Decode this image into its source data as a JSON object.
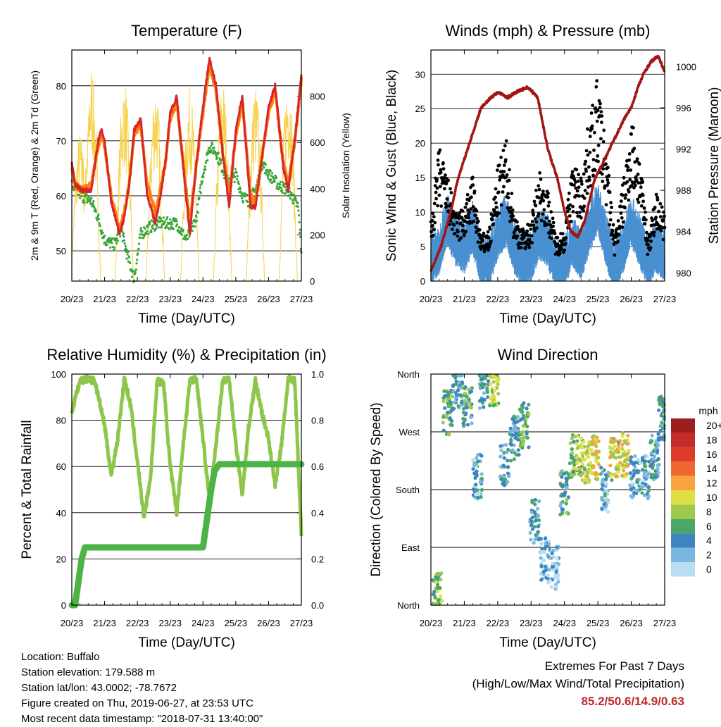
{
  "chart_data": [
    {
      "type": "line",
      "title": "Temperature (F)",
      "xlabel": "Time (Day/UTC)",
      "ylabel": "2m & 9m T (Red, Orange) & 2m Td (Green)",
      "y2label": "Solar Insolation (Yellow)",
      "x_ticks": [
        "20/23",
        "21/23",
        "22/23",
        "23/23",
        "24/23",
        "25/23",
        "26/23",
        "27/23"
      ],
      "y_ticks": [
        50,
        60,
        70,
        80
      ],
      "y2_ticks": [
        0,
        200,
        400,
        600,
        800
      ],
      "ylim": [
        44.5,
        86.5
      ],
      "y2lim": [
        0,
        1000
      ],
      "series": [
        {
          "name": "2m T",
          "color": "#d62728",
          "x": [
            0,
            0.1,
            0.3,
            0.6,
            0.8,
            0.9,
            1.0,
            1.2,
            1.45,
            1.6,
            1.75,
            1.9,
            2.1,
            2.3,
            2.55,
            2.7,
            2.85,
            3.0,
            3.2,
            3.45,
            3.6,
            3.75,
            3.95,
            4.2,
            4.4,
            4.6,
            4.8,
            5.0,
            5.2,
            5.45,
            5.6,
            5.8,
            6.0,
            6.2,
            6.45,
            6.6,
            6.8,
            7.0
          ],
          "values": [
            66,
            62,
            61,
            61,
            70,
            72,
            70,
            59,
            53,
            56,
            62,
            72,
            74,
            60,
            55,
            60,
            66,
            75,
            78,
            62,
            53,
            63,
            74,
            85,
            80,
            68,
            58,
            72,
            78,
            58,
            58,
            67,
            76,
            80,
            65,
            61,
            70,
            82
          ]
        },
        {
          "name": "9m T",
          "color": "#ff7f0e",
          "x": [
            0,
            0.1,
            0.3,
            0.6,
            0.8,
            0.9,
            1.0,
            1.2,
            1.45,
            1.6,
            1.75,
            1.9,
            2.1,
            2.3,
            2.55,
            2.7,
            2.85,
            3.0,
            3.2,
            3.45,
            3.6,
            3.75,
            3.95,
            4.2,
            4.4,
            4.6,
            4.8,
            5.0,
            5.2,
            5.45,
            5.6,
            5.8,
            6.0,
            6.2,
            6.45,
            6.6,
            6.8,
            7.0
          ],
          "values": [
            65,
            62,
            61,
            62,
            69,
            71,
            69,
            60,
            54,
            57,
            62,
            71,
            73,
            62,
            57,
            61,
            66,
            74,
            77,
            63,
            55,
            63,
            73,
            84,
            79,
            68,
            60,
            71,
            77,
            60,
            59,
            67,
            75,
            79,
            66,
            62,
            70,
            81
          ]
        },
        {
          "name": "2m Td",
          "color": "#3aa537",
          "x": [
            0,
            0.3,
            0.6,
            0.8,
            1.0,
            1.3,
            1.5,
            1.7,
            1.9,
            2.1,
            2.3,
            2.6,
            2.9,
            3.2,
            3.5,
            3.8,
            4.0,
            4.2,
            4.4,
            4.6,
            4.8,
            5.0,
            5.2,
            5.4,
            5.6,
            5.8,
            6.0,
            6.3,
            6.6,
            6.9,
            7.0
          ],
          "values": [
            62,
            60,
            59,
            56,
            52,
            51,
            54,
            49,
            45,
            53,
            54,
            55,
            55,
            55,
            52,
            56,
            64,
            69,
            68,
            65,
            62,
            64,
            60,
            59,
            61,
            66,
            64,
            62,
            61,
            58,
            50
          ]
        },
        {
          "name": "Solar Insolation",
          "color": "#f5d34c",
          "axis": "y2",
          "peaks_at_x": [
            0.25,
            0.6,
            1.6,
            2.55,
            3.6,
            4.6,
            5.6,
            6.6
          ],
          "peak_values": [
            650,
            950,
            880,
            870,
            850,
            880,
            860,
            920
          ]
        }
      ]
    },
    {
      "type": "scatter",
      "title": "Winds (mph) & Pressure (mb)",
      "xlabel": "Time (Day/UTC)",
      "ylabel": "Sonic Wind & Gust (Blue, Black)",
      "y2label": "Station Pressure (Maroon)",
      "x_ticks": [
        "20/23",
        "21/23",
        "22/23",
        "23/23",
        "24/23",
        "25/23",
        "26/23",
        "27/23"
      ],
      "y_ticks": [
        0,
        5,
        10,
        15,
        20,
        25,
        30
      ],
      "y2_ticks": [
        980,
        984,
        988,
        992,
        996,
        1000
      ],
      "ylim": [
        0,
        33.5
      ],
      "y2lim": [
        979.2,
        1001.6
      ],
      "series": [
        {
          "name": "Sonic Wind",
          "color": "#4a90d0",
          "x": [
            0,
            0.25,
            0.5,
            0.75,
            1.0,
            1.25,
            1.5,
            1.75,
            2.0,
            2.25,
            2.5,
            2.75,
            3.0,
            3.25,
            3.5,
            3.75,
            4.0,
            4.25,
            4.5,
            4.75,
            5.0,
            5.25,
            5.5,
            5.75,
            6.0,
            6.25,
            6.5,
            6.75,
            7.0
          ],
          "values": [
            4,
            6,
            10,
            7,
            6,
            9,
            4,
            4,
            8,
            10,
            6,
            4,
            5,
            8,
            7,
            3,
            4,
            7,
            5,
            9,
            12,
            7,
            3,
            6,
            10,
            7,
            4,
            6,
            5
          ]
        },
        {
          "name": "Gust",
          "color": "#000000",
          "x": [
            0,
            0.25,
            0.5,
            0.75,
            1.0,
            1.25,
            1.5,
            1.75,
            2.0,
            2.25,
            2.5,
            2.75,
            3.0,
            3.25,
            3.5,
            3.75,
            4.0,
            4.25,
            4.5,
            4.75,
            5.0,
            5.25,
            5.5,
            5.75,
            6.0,
            6.25,
            6.5,
            6.75,
            7.0
          ],
          "values": [
            8,
            18,
            14,
            9,
            10,
            14,
            6,
            7,
            15,
            19,
            9,
            7,
            8,
            15,
            12,
            6,
            7,
            16,
            14,
            22,
            27,
            18,
            6,
            13,
            22,
            17,
            6,
            12,
            9
          ]
        },
        {
          "name": "Station Pressure",
          "color": "#a31515",
          "axis": "y2",
          "x": [
            0,
            0.3,
            0.6,
            0.8,
            1.0,
            1.3,
            1.5,
            1.8,
            2.0,
            2.3,
            2.6,
            2.9,
            3.2,
            3.5,
            3.8,
            4.0,
            4.2,
            4.4,
            4.6,
            4.9,
            5.2,
            5.5,
            5.8,
            6.0,
            6.2,
            6.4,
            6.6,
            6.8,
            6.9,
            7.0
          ],
          "values": [
            980.2,
            982.5,
            986,
            989,
            991,
            994,
            996,
            997,
            997.5,
            997,
            997.6,
            998,
            997,
            992,
            989,
            986,
            984,
            983.5,
            985,
            989,
            991,
            993,
            995,
            996,
            998,
            999.5,
            1000.5,
            1001,
            1000.3,
            999.5
          ]
        }
      ]
    },
    {
      "type": "line",
      "title": "Relative Humidity (%) & Precipitation (in)",
      "xlabel": "Time (Day/UTC)",
      "ylabel": "Percent & Total Rainfall",
      "x_ticks": [
        "20/23",
        "21/23",
        "22/23",
        "23/23",
        "24/23",
        "25/23",
        "26/23",
        "27/23"
      ],
      "y_ticks": [
        0,
        20,
        40,
        60,
        80,
        100
      ],
      "y2_ticks": [
        "0.0",
        "0.2",
        "0.4",
        "0.6",
        "0.8",
        "1.0"
      ],
      "ylim": [
        0,
        100
      ],
      "y2lim": [
        0,
        1.0
      ],
      "series": [
        {
          "name": "Relative Humidity",
          "color": "#8dc64a",
          "x": [
            0,
            0.25,
            0.5,
            0.7,
            1.0,
            1.2,
            1.4,
            1.6,
            1.8,
            2.0,
            2.2,
            2.4,
            2.6,
            2.8,
            3.0,
            3.2,
            3.4,
            3.6,
            3.8,
            4.0,
            4.2,
            4.4,
            4.6,
            4.8,
            5.0,
            5.2,
            5.4,
            5.6,
            5.8,
            6.0,
            6.2,
            6.4,
            6.6,
            6.8,
            7.0
          ],
          "values": [
            84,
            97,
            98,
            97,
            78,
            56,
            72,
            98,
            86,
            62,
            38,
            55,
            97,
            96,
            60,
            40,
            70,
            97,
            98,
            72,
            45,
            70,
            97,
            98,
            70,
            48,
            78,
            97,
            83,
            72,
            52,
            70,
            98,
            97,
            31
          ]
        },
        {
          "name": "Total Rainfall",
          "color": "#4db346",
          "axis": "y2",
          "x": [
            0,
            0.1,
            0.2,
            0.3,
            0.4,
            0.6,
            1.0,
            2.0,
            3.0,
            4.0,
            4.05,
            4.15,
            4.25,
            4.35,
            4.5,
            5.0,
            6.0,
            7.0
          ],
          "values": [
            0,
            0,
            0.1,
            0.2,
            0.25,
            0.25,
            0.25,
            0.25,
            0.25,
            0.25,
            0.3,
            0.4,
            0.5,
            0.58,
            0.61,
            0.61,
            0.61,
            0.61
          ]
        }
      ]
    },
    {
      "type": "scatter",
      "title": "Wind Direction",
      "xlabel": "Time (Day/UTC)",
      "ylabel": "Direction (Colored By Speed)",
      "x_ticks": [
        "20/23",
        "21/23",
        "22/23",
        "23/23",
        "24/23",
        "25/23",
        "26/23",
        "27/23"
      ],
      "y_ticks": [
        "North",
        "East",
        "South",
        "West",
        "North"
      ],
      "ylim": [
        0,
        360
      ],
      "legend_title": "mph",
      "legend_labels": [
        "20+",
        "18",
        "16",
        "14",
        "12",
        "10",
        "8",
        "6",
        "4",
        "2",
        "0"
      ],
      "legend_colors": [
        "#9d1e1e",
        "#c42a27",
        "#df3b2b",
        "#ef6830",
        "#f8a33f",
        "#dedf47",
        "#9fc94a",
        "#4aa866",
        "#3d84c0",
        "#7bb6e0",
        "#b8def2"
      ],
      "clusters": [
        {
          "x": 0.2,
          "dir": 15,
          "speed": 7
        },
        {
          "x": 0.5,
          "dir": 300,
          "speed": 6
        },
        {
          "x": 0.8,
          "dir": 340,
          "speed": 4
        },
        {
          "x": 1.1,
          "dir": 310,
          "speed": 5
        },
        {
          "x": 1.4,
          "dir": 200,
          "speed": 3
        },
        {
          "x": 1.6,
          "dir": 340,
          "speed": 5
        },
        {
          "x": 1.9,
          "dir": 345,
          "speed": 8
        },
        {
          "x": 2.2,
          "dir": 220,
          "speed": 3
        },
        {
          "x": 2.5,
          "dir": 260,
          "speed": 4
        },
        {
          "x": 2.8,
          "dir": 280,
          "speed": 6
        },
        {
          "x": 3.1,
          "dir": 130,
          "speed": 4
        },
        {
          "x": 3.4,
          "dir": 70,
          "speed": 2
        },
        {
          "x": 3.7,
          "dir": 60,
          "speed": 2
        },
        {
          "x": 4.0,
          "dir": 175,
          "speed": 5
        },
        {
          "x": 4.3,
          "dir": 230,
          "speed": 7
        },
        {
          "x": 4.6,
          "dir": 225,
          "speed": 9
        },
        {
          "x": 4.9,
          "dir": 230,
          "speed": 10
        },
        {
          "x": 5.2,
          "dir": 180,
          "speed": 3
        },
        {
          "x": 5.5,
          "dir": 225,
          "speed": 9
        },
        {
          "x": 5.8,
          "dir": 235,
          "speed": 10
        },
        {
          "x": 6.1,
          "dir": 200,
          "speed": 3
        },
        {
          "x": 6.4,
          "dir": 200,
          "speed": 3
        },
        {
          "x": 6.7,
          "dir": 230,
          "speed": 4
        },
        {
          "x": 6.95,
          "dir": 290,
          "speed": 5
        }
      ]
    }
  ],
  "station": {
    "location": "Location: Buffalo",
    "elevation": "Station elevation: 179.588 m",
    "latlon": "Station lat/lon: 43.0002; -78.7672",
    "created": "Figure created on Thu, 2019-06-27, at 23:53 UTC",
    "latest": "Most recent data timestamp: \"2018-07-31 13:40:00\""
  },
  "extremes": {
    "title": "Extremes For Past 7 Days",
    "subtitle": "(High/Low/Max Wind/Total Precipitation)",
    "values": "85.2/50.6/14.9/0.63"
  }
}
